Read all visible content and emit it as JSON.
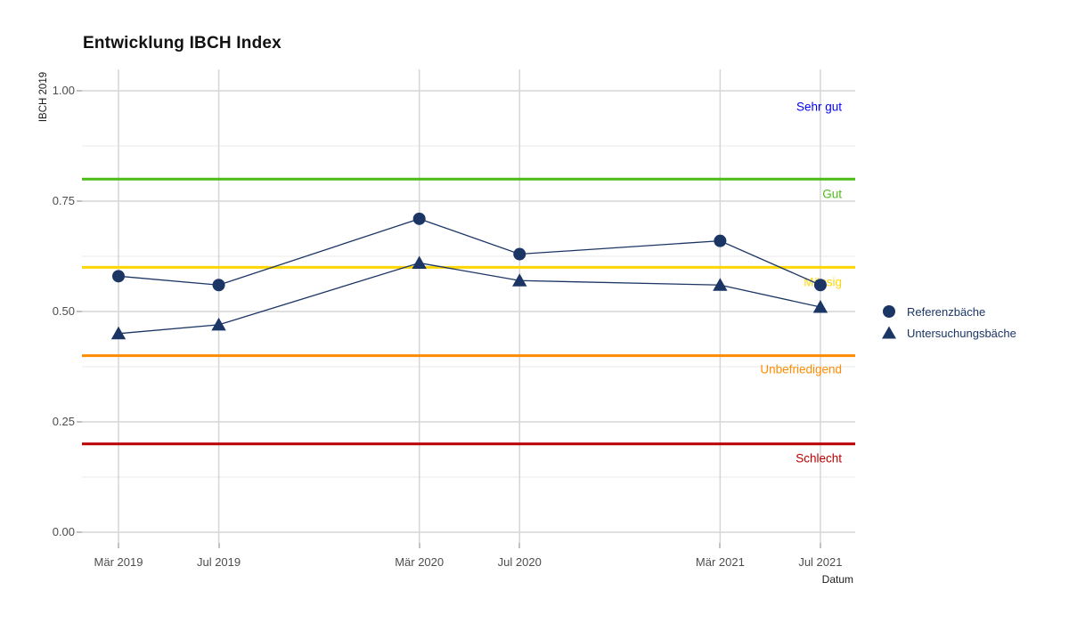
{
  "title": "Entwicklung IBCH Index",
  "axes": {
    "y_title": "IBCH 2019",
    "x_title": "Datum",
    "y_tick_labels": [
      "1.00",
      "0.75",
      "0.50",
      "0.25",
      "0.00"
    ],
    "x_tick_labels": [
      "Mär 2019",
      "Jul 2019",
      "Mär 2020",
      "Jul 2020",
      "Mär 2021",
      "Jul 2021"
    ]
  },
  "chart_data": {
    "type": "line",
    "title": "Entwicklung IBCH Index",
    "xlabel": "Datum",
    "ylabel": "IBCH 2019",
    "x_categories": [
      "Mär 2019",
      "Jul 2019",
      "Mär 2020",
      "Jul 2020",
      "Mär 2021",
      "Jul 2021"
    ],
    "x_months_offset": [
      0,
      4,
      12,
      16,
      24,
      28
    ],
    "ylim": [
      0.0,
      1.0
    ],
    "y_major_ticks": [
      0.0,
      0.25,
      0.5,
      0.75,
      1.0
    ],
    "y_minor_ticks": [
      0.125,
      0.375,
      0.625,
      0.875
    ],
    "grid": "on",
    "legend_position": "right",
    "series": [
      {
        "name": "Referenzbäche",
        "marker": "circle",
        "color": "#1b3565",
        "values": [
          0.58,
          0.56,
          0.71,
          0.63,
          0.66,
          0.56
        ]
      },
      {
        "name": "Untersuchungsbäche",
        "marker": "triangle",
        "color": "#1b3565",
        "values": [
          0.45,
          0.47,
          0.61,
          0.57,
          0.56,
          0.51
        ]
      }
    ],
    "quality_classes": [
      {
        "label": "Sehr gut",
        "line_value": null,
        "line_color": null,
        "label_color": "#0000ff",
        "label_y": 0.964
      },
      {
        "label": "Gut",
        "line_value": 0.8,
        "line_color": "#4cbb17",
        "label_color": "#4cbb17",
        "label_y": 0.766
      },
      {
        "label": "Mässig",
        "line_value": 0.6,
        "line_color": "#ffd700",
        "label_color": "#ffd700",
        "label_y": 0.567
      },
      {
        "label": "Unbefriedigend",
        "line_value": 0.4,
        "line_color": "#ff8c00",
        "label_color": "#ff8c00",
        "label_y": 0.369
      },
      {
        "label": "Schlecht",
        "line_value": 0.2,
        "line_color": "#b80000",
        "label_color": "#b80000",
        "label_y": 0.167
      }
    ]
  },
  "legend": {
    "items": [
      {
        "label": "Referenzbäche",
        "marker": "circle"
      },
      {
        "label": "Untersuchungsbäche",
        "marker": "triangle"
      }
    ]
  },
  "colors": {
    "series": "#1b3565",
    "grid_major": "#d6d6d6",
    "grid_minor": "#e8e8e8",
    "axis_text": "#4d4d4d",
    "legend_text": "#1b3565"
  }
}
